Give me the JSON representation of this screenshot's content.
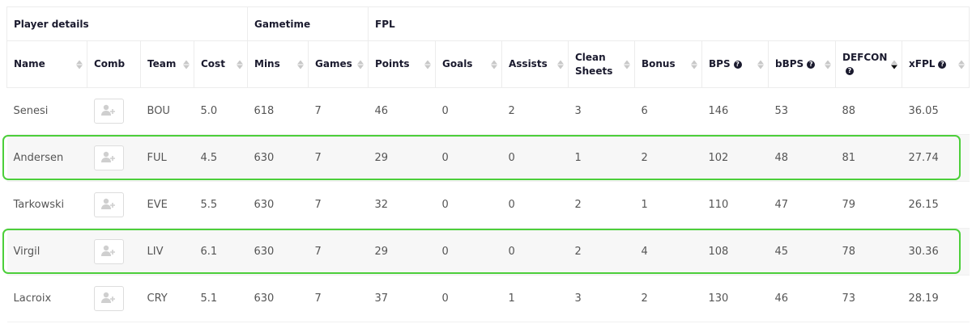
{
  "groups": [
    {
      "label": "Player details",
      "span": 4
    },
    {
      "label": "Gametime",
      "span": 2
    },
    {
      "label": "FPL",
      "span": 9
    }
  ],
  "columns": [
    {
      "label": "Name",
      "help": false,
      "sort": "none"
    },
    {
      "label": "Comb",
      "help": false,
      "sort": null
    },
    {
      "label": "Team",
      "help": false,
      "sort": "none"
    },
    {
      "label": "Cost",
      "help": false,
      "sort": "none"
    },
    {
      "label": "Mins",
      "help": false,
      "sort": "none"
    },
    {
      "label": "Games",
      "help": false,
      "sort": "none"
    },
    {
      "label": "Points",
      "help": false,
      "sort": "none"
    },
    {
      "label": "Goals",
      "help": false,
      "sort": "none"
    },
    {
      "label": "Assists",
      "help": false,
      "sort": "none"
    },
    {
      "label": "Clean Sheets",
      "help": false,
      "sort": "none"
    },
    {
      "label": "Bonus",
      "help": false,
      "sort": "none"
    },
    {
      "label": "BPS",
      "help": true,
      "sort": "none"
    },
    {
      "label": "bBPS",
      "help": true,
      "sort": "none"
    },
    {
      "label": "DEFCON",
      "help": true,
      "sort": "desc"
    },
    {
      "label": "xFPL",
      "help": true,
      "sort": "none"
    }
  ],
  "rows": [
    {
      "name": "Senesi",
      "team": "BOU",
      "cost": "5.0",
      "mins": "618",
      "games": "7",
      "points": "46",
      "goals": "0",
      "assists": "2",
      "cs": "3",
      "bonus": "6",
      "bps": "146",
      "bbps": "53",
      "defcon": "88",
      "xfpl": "36.05",
      "highlighted": false
    },
    {
      "name": "Andersen",
      "team": "FUL",
      "cost": "4.5",
      "mins": "630",
      "games": "7",
      "points": "29",
      "goals": "0",
      "assists": "0",
      "cs": "1",
      "bonus": "2",
      "bps": "102",
      "bbps": "48",
      "defcon": "81",
      "xfpl": "27.74",
      "highlighted": true
    },
    {
      "name": "Tarkowski",
      "team": "EVE",
      "cost": "5.5",
      "mins": "630",
      "games": "7",
      "points": "32",
      "goals": "0",
      "assists": "0",
      "cs": "2",
      "bonus": "1",
      "bps": "110",
      "bbps": "47",
      "defcon": "79",
      "xfpl": "26.15",
      "highlighted": false
    },
    {
      "name": "Virgil",
      "team": "LIV",
      "cost": "6.1",
      "mins": "630",
      "games": "7",
      "points": "29",
      "goals": "0",
      "assists": "0",
      "cs": "2",
      "bonus": "4",
      "bps": "108",
      "bbps": "45",
      "defcon": "78",
      "xfpl": "30.36",
      "highlighted": true
    },
    {
      "name": "Lacroix",
      "team": "CRY",
      "cost": "5.1",
      "mins": "630",
      "games": "7",
      "points": "37",
      "goals": "0",
      "assists": "1",
      "cs": "3",
      "bonus": "2",
      "bps": "130",
      "bbps": "46",
      "defcon": "73",
      "xfpl": "28.19",
      "highlighted": false
    }
  ],
  "help_glyph": "?",
  "colors": {
    "highlight_outline": "#4ccf3a",
    "header_text": "#1a1a2e"
  }
}
